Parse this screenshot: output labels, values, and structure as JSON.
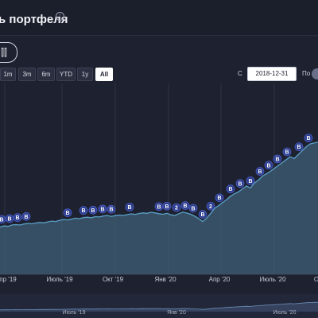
{
  "header": {
    "title": "ь портфеля",
    "info_icon": "info-icon"
  },
  "controls": {
    "settings_icon": "sliders-icon",
    "settings_label": "⫿⫿"
  },
  "range_buttons": [
    {
      "label": "1m"
    },
    {
      "label": "3m"
    },
    {
      "label": "6m"
    },
    {
      "label": "YTD"
    },
    {
      "label": "1y"
    },
    {
      "label": "All",
      "active": true
    }
  ],
  "date_range": {
    "from_label": "С",
    "from_value": "2018-12-31",
    "to_label": "По"
  },
  "colors": {
    "background": "#1e2130",
    "series_line": "#5aa0c8",
    "area_fill": "#3f5f75",
    "marker": "#2d3e8f"
  },
  "chart_data": {
    "type": "area",
    "x_tick_labels": [
      "пр '19",
      "Июль '19",
      "Окт '19",
      "Янв '20",
      "Апр '20",
      "Июль '20",
      "О"
    ],
    "navigator_labels": [
      "Июль '19",
      "Янв '20",
      "Июль '20"
    ],
    "marker_label": "B",
    "marker_label_alt": "2",
    "grid": true,
    "series": [
      {
        "x": [
          0,
          5,
          10,
          15,
          20,
          25,
          30,
          35,
          40,
          45,
          50,
          55,
          60,
          65,
          70,
          75,
          80,
          85,
          90,
          95,
          100,
          105,
          110,
          115,
          120,
          125,
          130,
          135,
          140,
          145,
          150,
          155,
          160,
          165,
          170,
          175,
          180,
          185,
          190,
          195,
          200,
          205,
          210,
          215,
          220,
          225,
          230,
          235,
          240,
          245,
          250,
          255,
          260,
          265,
          270,
          275,
          280,
          285,
          290,
          295,
          300,
          305,
          310,
          315,
          320,
          325,
          330,
          335,
          340,
          345,
          350,
          355,
          360,
          365,
          370,
          375,
          380,
          385,
          390,
          395,
          400
        ],
        "y": [
          10,
          10.5,
          10.3,
          11,
          11.2,
          11,
          11.5,
          11.8,
          11.6,
          12,
          12.3,
          12.1,
          12.6,
          13,
          12.8,
          13.4,
          13.8,
          13.6,
          14,
          14.5,
          14.2,
          14.8,
          15,
          14.7,
          15.3,
          15.1,
          15.6,
          15.9,
          15.4,
          15.8,
          16.1,
          15.9,
          16.3,
          16.7,
          16.4,
          16.9,
          17.2,
          17,
          17.5,
          17.2,
          16.8,
          16.5,
          17,
          16.2,
          15.9,
          16.8,
          17.6,
          17.1,
          16.5,
          15.5,
          14.2,
          12.8,
          14.5,
          17,
          19.5,
          21,
          22.5,
          24,
          25.8,
          27,
          28,
          29.5,
          31,
          30,
          32.5,
          34,
          36,
          37.2,
          38.5,
          40,
          41.5,
          43,
          44.5,
          46,
          45,
          47,
          49,
          51,
          52.5,
          53,
          53.5
        ]
      }
    ],
    "markers": [
      {
        "x": 2,
        "label": "B"
      },
      {
        "x": 12,
        "label": "B"
      },
      {
        "x": 22,
        "label": "B"
      },
      {
        "x": 33,
        "label": "B"
      },
      {
        "x": 85,
        "label": "B"
      },
      {
        "x": 105,
        "label": "B"
      },
      {
        "x": 117,
        "label": "B"
      },
      {
        "x": 129,
        "label": "B"
      },
      {
        "x": 140,
        "label": "B"
      },
      {
        "x": 163,
        "label": "B"
      },
      {
        "x": 200,
        "label": "B"
      },
      {
        "x": 210,
        "label": "B"
      },
      {
        "x": 222,
        "label": "2"
      },
      {
        "x": 233,
        "label": "B"
      },
      {
        "x": 243,
        "label": "B"
      },
      {
        "x": 255,
        "label": "B"
      },
      {
        "x": 265,
        "label": "2"
      },
      {
        "x": 276,
        "label": "B"
      },
      {
        "x": 290,
        "label": "B"
      },
      {
        "x": 302,
        "label": "B"
      },
      {
        "x": 315,
        "label": "B"
      },
      {
        "x": 327,
        "label": "B"
      },
      {
        "x": 338,
        "label": "B"
      },
      {
        "x": 349,
        "label": "B"
      },
      {
        "x": 361,
        "label": "B"
      },
      {
        "x": 376,
        "label": "B"
      },
      {
        "x": 388,
        "label": "B"
      }
    ]
  }
}
